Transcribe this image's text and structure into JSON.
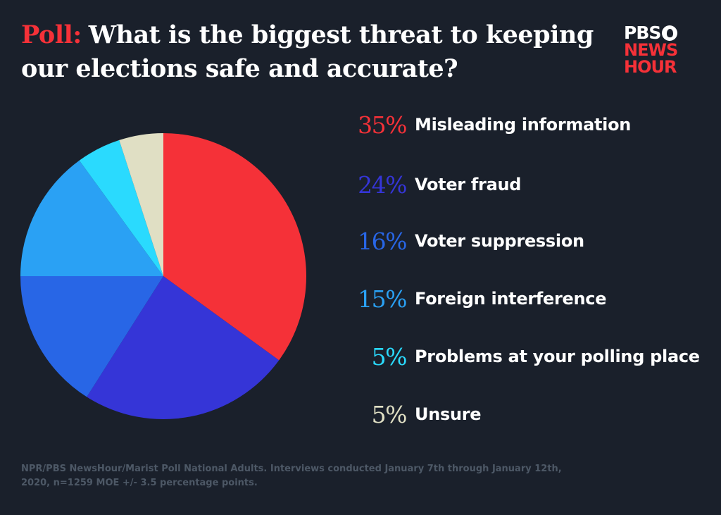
{
  "header": {
    "poll_label": "Poll:",
    "title_line1": "What is the biggest threat to keeping",
    "title_line2": "our elections safe and accurate?"
  },
  "logo": {
    "pbs": "PBS",
    "line2": "NEWS",
    "line3": "HOUR"
  },
  "chart_data": {
    "type": "pie",
    "title": "What is the biggest threat to keeping our elections safe and accurate?",
    "slices": [
      {
        "label": "Misleading information",
        "value": 35,
        "display": "35%",
        "color": "#f53138"
      },
      {
        "label": "Voter fraud",
        "value": 24,
        "display": "24%",
        "color": "#3535d7"
      },
      {
        "label": "Voter suppression",
        "value": 16,
        "display": "16%",
        "color": "#2866e6"
      },
      {
        "label": "Foreign interference",
        "value": 15,
        "display": "15%",
        "color": "#2aa1f4"
      },
      {
        "label": "Problems at your polling place",
        "value": 5,
        "display": "5%",
        "color": "#2adafe"
      },
      {
        "label": "Unsure",
        "value": 5,
        "display": "5%",
        "color": "#e0dfc4"
      }
    ]
  },
  "footer": {
    "source_line1": "NPR/PBS NewsHour/Marist Poll National Adults. Interviews conducted January 7th through January 12th,",
    "source_line2": "2020, n=1259 MOE +/- 3.5 percentage points."
  }
}
